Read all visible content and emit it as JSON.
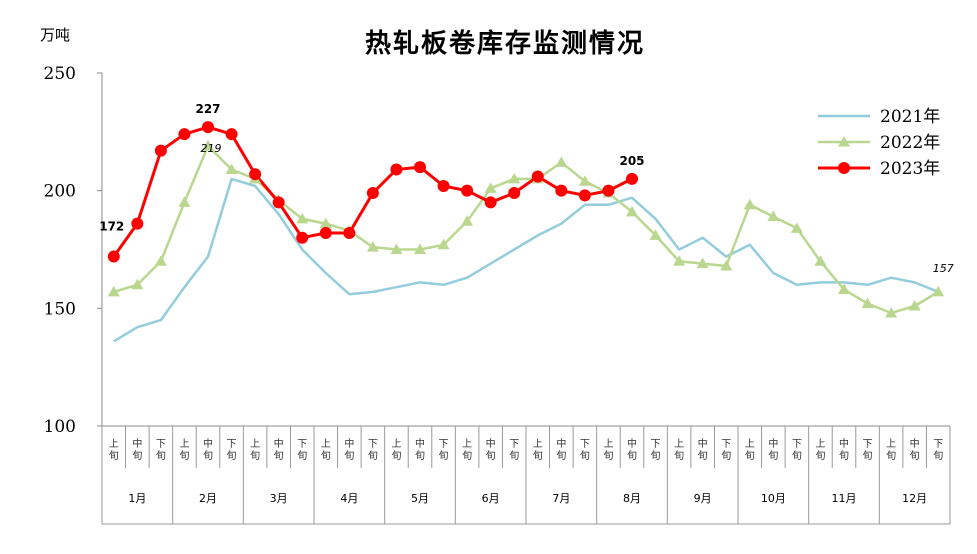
{
  "chart_data": {
    "type": "line",
    "title": "热轧板卷库存监测情况",
    "ylabel": "万吨",
    "ylim": [
      100,
      250
    ],
    "yticks": [
      100,
      150,
      200,
      250
    ],
    "months": [
      "1月",
      "2月",
      "3月",
      "4月",
      "5月",
      "6月",
      "7月",
      "8月",
      "9月",
      "10月",
      "11月",
      "12月"
    ],
    "subperiods": [
      "上旬",
      "中旬",
      "下旬"
    ],
    "legend_position": "top-right",
    "series": [
      {
        "name": "2021年",
        "color": "#93cddd",
        "marker": "none",
        "values": [
          136,
          142,
          145,
          159,
          172,
          205,
          202,
          190,
          175,
          165,
          156,
          157,
          159,
          161,
          160,
          163,
          169,
          175,
          181,
          186,
          194,
          194,
          197,
          188,
          175,
          180,
          172,
          177,
          165,
          160,
          161,
          161,
          160,
          163,
          161,
          157
        ]
      },
      {
        "name": "2022年",
        "color": "#b9d78f",
        "marker": "triangle",
        "values": [
          157,
          160,
          170,
          195,
          219,
          209,
          205,
          196,
          188,
          186,
          183,
          176,
          175,
          175,
          177,
          187,
          201,
          205,
          205,
          212,
          204,
          199,
          191,
          181,
          170,
          169,
          168,
          194,
          189,
          184,
          170,
          158,
          152,
          148,
          151,
          157
        ]
      },
      {
        "name": "2023年",
        "color": "#ff0000",
        "marker": "circle",
        "values": [
          172,
          186,
          217,
          224,
          227,
          224,
          207,
          195,
          180,
          182,
          182,
          199,
          209,
          210,
          202,
          200,
          195,
          199,
          206,
          200,
          198,
          200,
          205,
          null,
          null,
          null,
          null,
          null,
          null,
          null,
          null,
          null,
          null,
          null,
          null,
          null
        ]
      }
    ],
    "annotations": [
      {
        "series": 2,
        "index": 0,
        "text": "172",
        "style": "bold"
      },
      {
        "series": 2,
        "index": 4,
        "text": "227",
        "style": "bold"
      },
      {
        "series": 2,
        "index": 22,
        "text": "205",
        "style": "bold"
      },
      {
        "series": 1,
        "index": 4,
        "text": "219",
        "style": "italic"
      },
      {
        "series": 0,
        "index": 35,
        "text": "157",
        "style": "italic"
      }
    ]
  }
}
